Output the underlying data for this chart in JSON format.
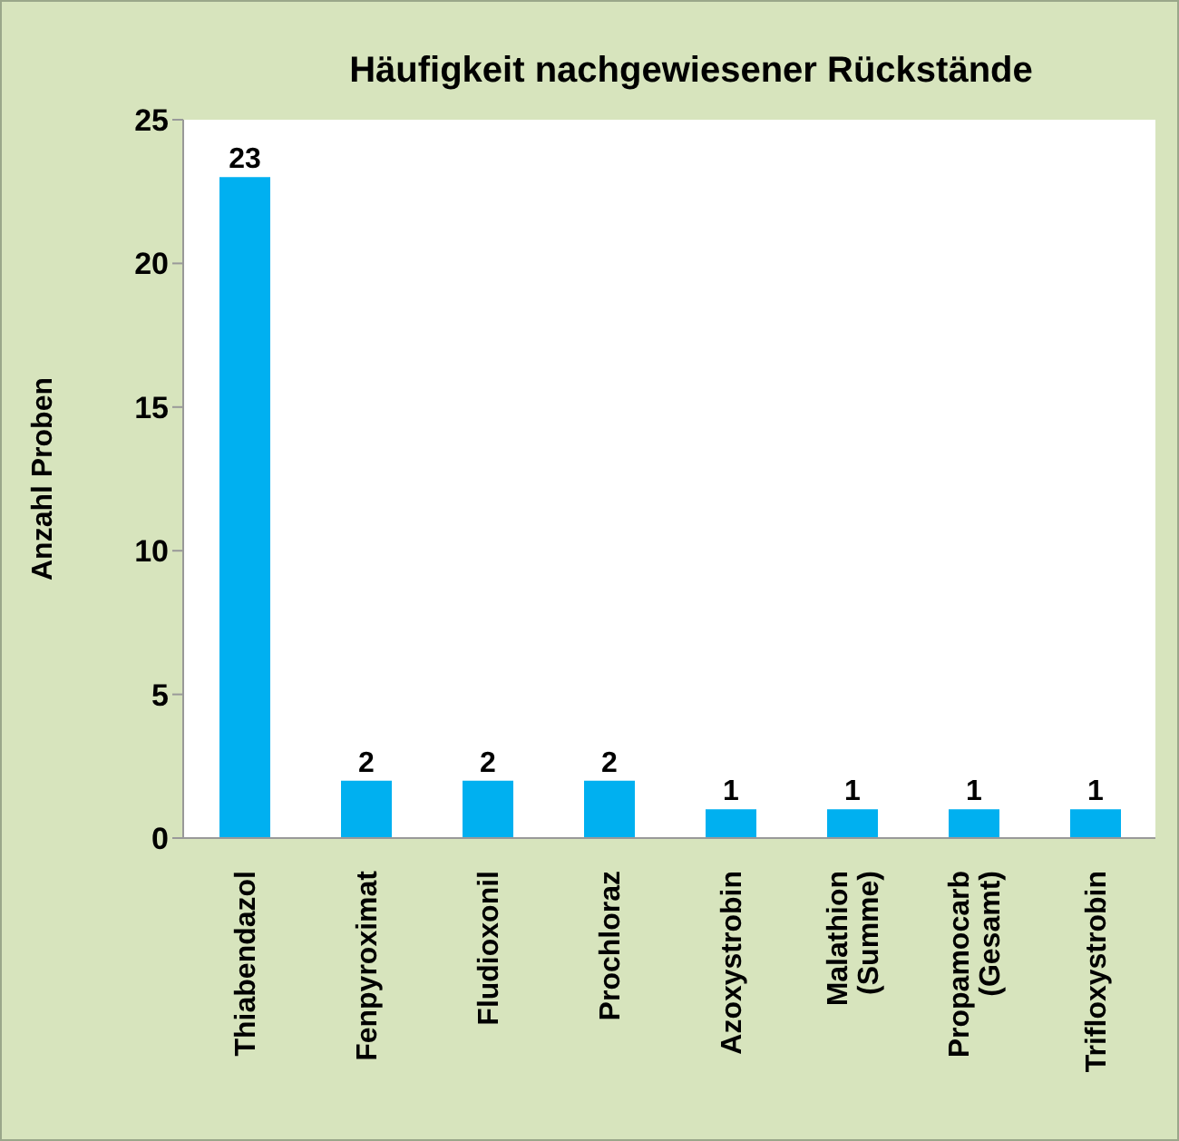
{
  "chart_data": {
    "type": "bar",
    "title": "Häufigkeit nachgewiesener Rückstände",
    "ylabel": "Anzahl Proben",
    "categories": [
      "Thiabendazol",
      "Fenpyroximat",
      "Fludioxonil",
      "Prochloraz",
      "Azoxystrobin",
      "Malathion\n(Summe)",
      "Propamocarb\n(Gesamt)",
      "Trifloxystrobin"
    ],
    "values": [
      23,
      2,
      2,
      2,
      1,
      1,
      1,
      1
    ],
    "color": "#00b0f0",
    "ylim": [
      0,
      25
    ],
    "yticks": [
      0,
      5,
      10,
      15,
      20,
      25
    ],
    "grid": false,
    "data_labels": true,
    "legend": false
  }
}
